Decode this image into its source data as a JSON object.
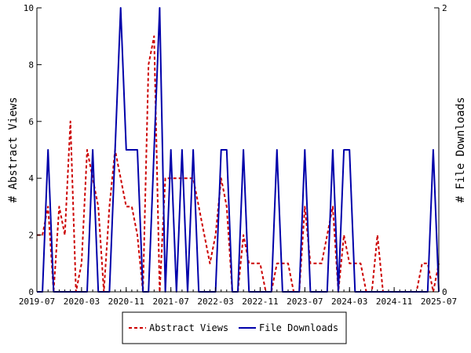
{
  "chart_data": {
    "type": "line",
    "x": [
      "2019-07",
      "2019-08",
      "2019-09",
      "2019-10",
      "2019-11",
      "2019-12",
      "2020-01",
      "2020-02",
      "2020-03",
      "2020-04",
      "2020-05",
      "2020-06",
      "2020-07",
      "2020-08",
      "2020-09",
      "2020-10",
      "2020-11",
      "2020-12",
      "2021-01",
      "2021-02",
      "2021-03",
      "2021-04",
      "2021-05",
      "2021-06",
      "2021-07",
      "2021-08",
      "2021-09",
      "2021-10",
      "2021-11",
      "2021-12",
      "2022-01",
      "2022-02",
      "2022-03",
      "2022-04",
      "2022-05",
      "2022-06",
      "2022-07",
      "2022-08",
      "2022-09",
      "2022-10",
      "2022-11",
      "2022-12",
      "2023-01",
      "2023-02",
      "2023-03",
      "2023-04",
      "2023-05",
      "2023-06",
      "2023-07",
      "2023-08",
      "2023-09",
      "2023-10",
      "2023-11",
      "2023-12",
      "2024-01",
      "2024-02",
      "2024-03",
      "2024-04",
      "2024-05",
      "2024-06",
      "2024-07",
      "2024-08",
      "2024-09",
      "2024-10",
      "2024-11",
      "2024-12",
      "2025-01",
      "2025-02",
      "2025-03",
      "2025-04",
      "2025-05",
      "2025-06",
      "2025-07"
    ],
    "x_tick_labels": [
      "2019-07",
      "2020-03",
      "2020-11",
      "2021-07",
      "2022-03",
      "2022-11",
      "2023-07",
      "2024-03",
      "2024-11",
      "2025-07"
    ],
    "series": [
      {
        "name": "Abstract Views",
        "axis": "left",
        "color": "#cc0000",
        "style": "dashed",
        "values": [
          2,
          2,
          3,
          0,
          3,
          2,
          6,
          0,
          1,
          5,
          4,
          3,
          0,
          3,
          5,
          4,
          3,
          3,
          2,
          0,
          8,
          9,
          0,
          4,
          4,
          4,
          4,
          4,
          4,
          3,
          2,
          1,
          2,
          4,
          3,
          0,
          0,
          2,
          1,
          1,
          1,
          0,
          0,
          1,
          1,
          1,
          0,
          0,
          3,
          1,
          1,
          1,
          2,
          3,
          0,
          2,
          1,
          1,
          1,
          0,
          0,
          2,
          0,
          0,
          0,
          0,
          0,
          0,
          0,
          1,
          1,
          0,
          1
        ]
      },
      {
        "name": "File Downloads",
        "axis": "right",
        "color": "#0000aa",
        "style": "solid",
        "values": [
          0,
          0,
          1,
          0,
          0,
          0,
          0,
          0,
          0,
          0,
          1,
          0,
          0,
          0,
          1,
          2,
          1,
          1,
          1,
          0,
          0,
          1,
          2,
          0,
          1,
          0,
          1,
          0,
          1,
          0,
          0,
          0,
          0,
          1,
          1,
          0,
          0,
          1,
          0,
          0,
          0,
          0,
          0,
          1,
          0,
          0,
          0,
          0,
          1,
          0,
          0,
          0,
          0,
          1,
          0,
          1,
          1,
          0,
          0,
          0,
          0,
          0,
          0,
          0,
          0,
          0,
          0,
          0,
          0,
          0,
          0,
          1,
          0
        ]
      }
    ],
    "ylabel": "# Abstract Views",
    "y2label": "# File Downloads",
    "ylim": [
      0,
      10
    ],
    "y2lim": [
      0,
      2
    ],
    "y_ticks": [
      0,
      2,
      4,
      6,
      8,
      10
    ],
    "y2_ticks": [
      0,
      2
    ],
    "grid": false,
    "legend_position": "bottom-center"
  }
}
